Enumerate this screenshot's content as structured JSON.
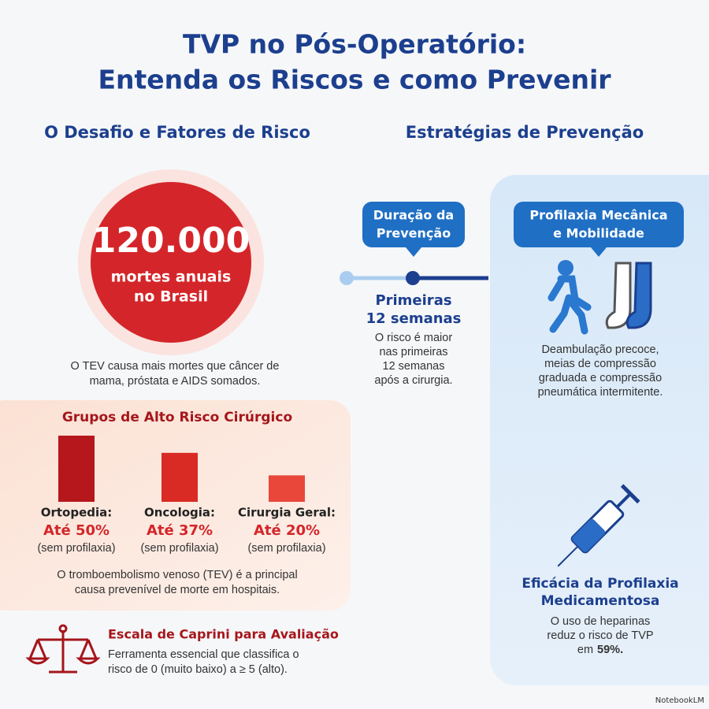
{
  "title": [
    "TVP no Pós-Operatório:",
    "Entenda os Riscos e como Prevenir"
  ],
  "left": {
    "heading": "O Desafio e Fatores de Risco",
    "stat": {
      "number": "120.000",
      "label": [
        "mortes anuais",
        "no Brasil"
      ]
    },
    "note": [
      "O TEV causa mais mortes que câncer de",
      "mama, próstata e AIDS somados."
    ]
  },
  "risk_groups": {
    "title": "Grupos de Alto Risco Cirúrgico",
    "groups": [
      {
        "name": "Ortopedia:",
        "value": 50,
        "value_label": "Até 50%",
        "note": "(sem profilaxia)",
        "color": "#b5171c"
      },
      {
        "name": "Oncologia:",
        "value": 37,
        "value_label": "Até 37%",
        "note": "(sem profilaxia)",
        "color": "#d92b23"
      },
      {
        "name": "Cirurgia Geral:",
        "value": 20,
        "value_label": "Até 20%",
        "note": "(sem profilaxia)",
        "color": "#e8473a"
      }
    ],
    "footer": [
      "O tromboembolismo venoso (TEV) é a principal",
      "causa prevenível de morte em hospitais."
    ]
  },
  "caprini": {
    "title": "Escala de Caprini para Avaliação",
    "text": [
      "Ferramenta essencial que classifica o",
      "risco de 0 (muito baixo) a ≥ 5 (alto)."
    ]
  },
  "right": {
    "heading": "Estratégias de Prevenção",
    "duration": {
      "badge": [
        "Duração da",
        "Prevenção"
      ],
      "title": [
        "Primeiras",
        "12 semanas"
      ],
      "text": [
        "O risco é maior",
        "nas primeiras",
        "12 semanas",
        "após a cirurgia."
      ]
    },
    "mechanical": {
      "badge": [
        "Profilaxia Mecânica",
        "e Mobilidade"
      ],
      "text": [
        "Deambulação precoce,",
        "meias de compressão",
        "graduada e compressão",
        "pneumática intermitente."
      ]
    },
    "pharma": {
      "title": [
        "Eficácia da Profilaxia",
        "Medicamentosa"
      ],
      "text": [
        "O uso de heparinas",
        "reduz o risco de TVP",
        "em"
      ],
      "highlight": "59%."
    }
  },
  "brand": "NotebookLM"
}
